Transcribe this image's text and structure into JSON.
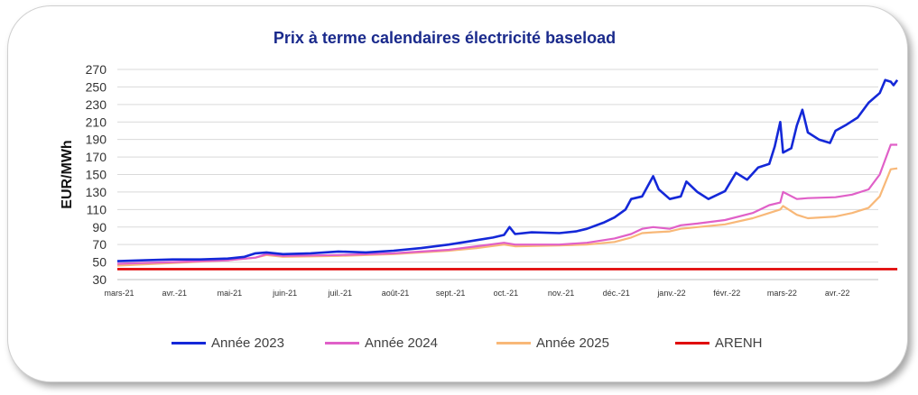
{
  "chart_data": {
    "type": "line",
    "title": "Prix à terme calendaires électricité baseload",
    "ylabel": "EUR/MWh",
    "xlabel": "",
    "ylim": [
      30,
      270
    ],
    "yticks": [
      30,
      50,
      70,
      90,
      110,
      130,
      150,
      170,
      190,
      210,
      230,
      250,
      270
    ],
    "x_ticks": [
      "mars-21",
      "avr.-21",
      "mai-21",
      "juin-21",
      "juil.-21",
      "août-21",
      "sept.-21",
      "oct.-21",
      "nov.-21",
      "déc.-21",
      "janv.-22",
      "févr.-22",
      "mars-22",
      "avr.-22"
    ],
    "grid": "horizontal",
    "legend_position": "bottom",
    "series": [
      {
        "name": "Année 2023",
        "color": "#1428d8",
        "points": [
          [
            0.0,
            51
          ],
          [
            0.5,
            52
          ],
          [
            1.0,
            53
          ],
          [
            1.5,
            53
          ],
          [
            2.0,
            54
          ],
          [
            2.3,
            56
          ],
          [
            2.5,
            60
          ],
          [
            2.7,
            61
          ],
          [
            3.0,
            59
          ],
          [
            3.5,
            60
          ],
          [
            4.0,
            62
          ],
          [
            4.5,
            61
          ],
          [
            5.0,
            63
          ],
          [
            5.5,
            66
          ],
          [
            6.0,
            70
          ],
          [
            6.3,
            73
          ],
          [
            6.5,
            75
          ],
          [
            6.8,
            78
          ],
          [
            7.0,
            81
          ],
          [
            7.1,
            90
          ],
          [
            7.2,
            82
          ],
          [
            7.5,
            84
          ],
          [
            8.0,
            83
          ],
          [
            8.3,
            85
          ],
          [
            8.5,
            88
          ],
          [
            8.8,
            95
          ],
          [
            9.0,
            101
          ],
          [
            9.2,
            110
          ],
          [
            9.3,
            122
          ],
          [
            9.5,
            125
          ],
          [
            9.7,
            148
          ],
          [
            9.8,
            133
          ],
          [
            10.0,
            122
          ],
          [
            10.2,
            125
          ],
          [
            10.3,
            142
          ],
          [
            10.5,
            130
          ],
          [
            10.7,
            122
          ],
          [
            11.0,
            131
          ],
          [
            11.2,
            152
          ],
          [
            11.4,
            144
          ],
          [
            11.6,
            158
          ],
          [
            11.8,
            162
          ],
          [
            11.9,
            182
          ],
          [
            12.0,
            210
          ],
          [
            12.05,
            175
          ],
          [
            12.2,
            180
          ],
          [
            12.3,
            206
          ],
          [
            12.4,
            224
          ],
          [
            12.5,
            198
          ],
          [
            12.7,
            190
          ],
          [
            12.9,
            186
          ],
          [
            13.0,
            200
          ],
          [
            13.2,
            207
          ],
          [
            13.4,
            215
          ],
          [
            13.6,
            232
          ],
          [
            13.8,
            243
          ],
          [
            13.9,
            258
          ],
          [
            14.0,
            256
          ],
          [
            14.05,
            252
          ],
          [
            14.12,
            258
          ]
        ]
      },
      {
        "name": "Année 2024",
        "color": "#e060c8",
        "points": [
          [
            0.0,
            48
          ],
          [
            1.0,
            50
          ],
          [
            2.0,
            52
          ],
          [
            2.5,
            55
          ],
          [
            2.7,
            59
          ],
          [
            3.0,
            57
          ],
          [
            4.0,
            58
          ],
          [
            5.0,
            60
          ],
          [
            6.0,
            64
          ],
          [
            6.5,
            68
          ],
          [
            7.0,
            72
          ],
          [
            7.2,
            70
          ],
          [
            8.0,
            70
          ],
          [
            8.5,
            72
          ],
          [
            9.0,
            77
          ],
          [
            9.3,
            82
          ],
          [
            9.5,
            88
          ],
          [
            9.7,
            90
          ],
          [
            10.0,
            88
          ],
          [
            10.2,
            92
          ],
          [
            10.5,
            94
          ],
          [
            11.0,
            98
          ],
          [
            11.5,
            106
          ],
          [
            11.8,
            115
          ],
          [
            12.0,
            118
          ],
          [
            12.05,
            130
          ],
          [
            12.3,
            122
          ],
          [
            12.5,
            123
          ],
          [
            13.0,
            124
          ],
          [
            13.3,
            127
          ],
          [
            13.6,
            133
          ],
          [
            13.8,
            150
          ],
          [
            14.0,
            184
          ],
          [
            14.12,
            184
          ]
        ]
      },
      {
        "name": "Année 2025",
        "color": "#f8b878",
        "points": [
          [
            0.0,
            46
          ],
          [
            1.0,
            49
          ],
          [
            2.0,
            52
          ],
          [
            2.5,
            55
          ],
          [
            2.7,
            58
          ],
          [
            3.0,
            56
          ],
          [
            4.0,
            57
          ],
          [
            5.0,
            59
          ],
          [
            6.0,
            63
          ],
          [
            6.5,
            66
          ],
          [
            7.0,
            70
          ],
          [
            7.2,
            68
          ],
          [
            8.0,
            69
          ],
          [
            8.5,
            70
          ],
          [
            9.0,
            73
          ],
          [
            9.3,
            78
          ],
          [
            9.5,
            83
          ],
          [
            9.7,
            84
          ],
          [
            10.0,
            85
          ],
          [
            10.2,
            88
          ],
          [
            10.5,
            90
          ],
          [
            11.0,
            93
          ],
          [
            11.5,
            100
          ],
          [
            11.8,
            106
          ],
          [
            12.0,
            110
          ],
          [
            12.05,
            114
          ],
          [
            12.3,
            104
          ],
          [
            12.5,
            100
          ],
          [
            13.0,
            102
          ],
          [
            13.3,
            106
          ],
          [
            13.6,
            112
          ],
          [
            13.8,
            125
          ],
          [
            14.0,
            156
          ],
          [
            14.12,
            157
          ]
        ]
      },
      {
        "name": "ARENH",
        "color": "#e00000",
        "points": [
          [
            0.0,
            42
          ],
          [
            14.12,
            42
          ]
        ]
      }
    ]
  }
}
